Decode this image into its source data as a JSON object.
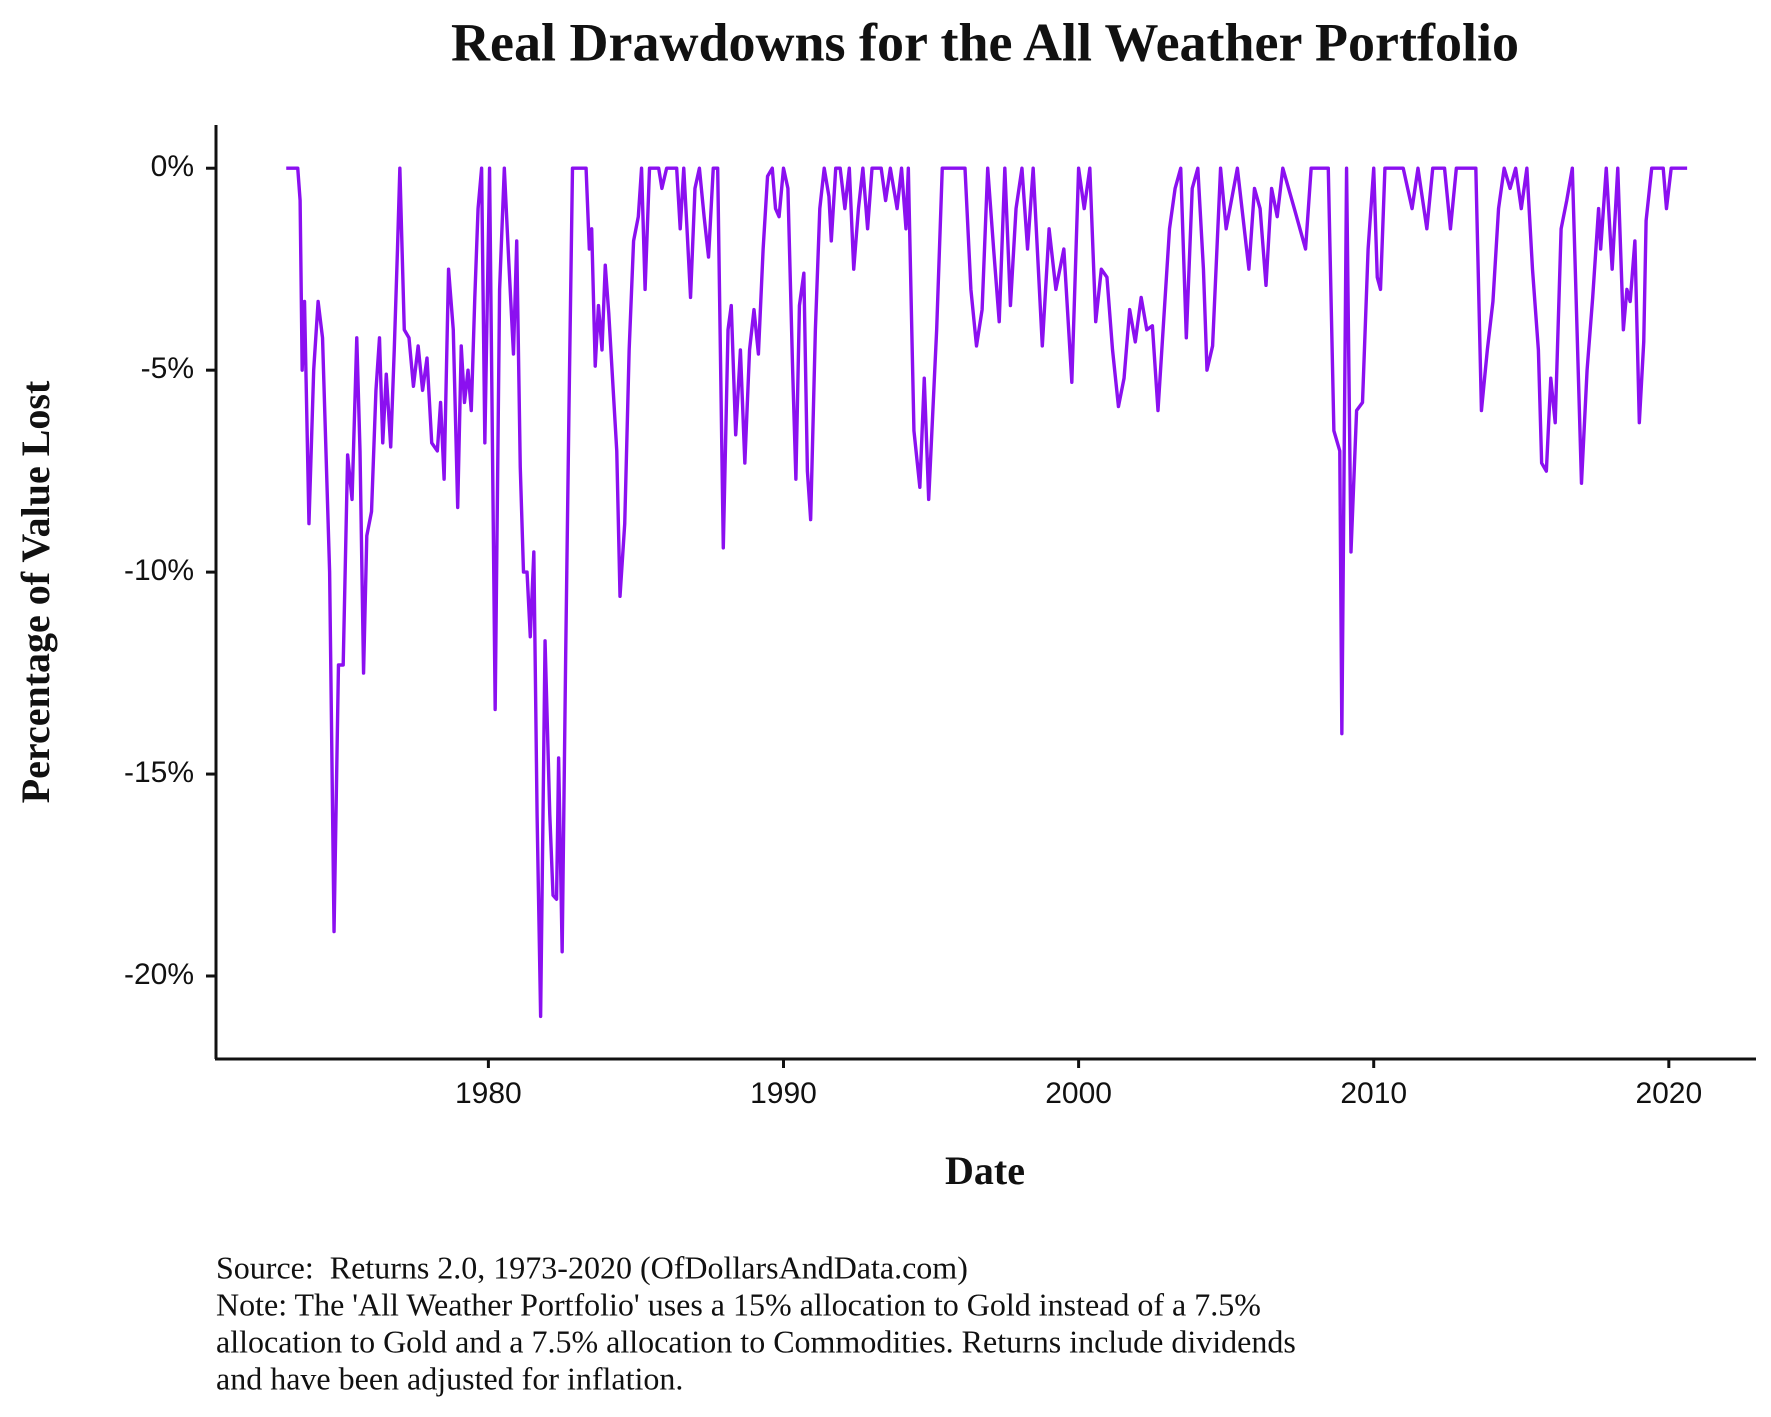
{
  "chart_data": {
    "type": "line",
    "title": "Real Drawdowns for the All Weather Portfolio",
    "xlabel": "Date",
    "ylabel": "Percentage of Value Lost",
    "footer": [
      "Source:  Returns 2.0, 1973-2020 (OfDollarsAndData.com)",
      "Note: The 'All Weather Portfolio' uses a 15% allocation to Gold instead of a 7.5%",
      "allocation to Gold and a 7.5% allocation to Commodities. Returns include dividends",
      "and have been adjusted for inflation."
    ],
    "color": "#8b10f0",
    "xlim": [
      1970.77,
      2022.92
    ],
    "xticks": [
      1980,
      1990,
      2000,
      2010,
      2020
    ],
    "ylim": [
      -22.03,
      1.07
    ],
    "yticks": [
      {
        "value": 0,
        "label": "0%"
      },
      {
        "value": -5,
        "label": "-5%"
      },
      {
        "value": -10,
        "label": "-10%"
      },
      {
        "value": -15,
        "label": "-15%"
      },
      {
        "value": -20,
        "label": "-20%"
      }
    ],
    "grid": false,
    "x": [
      1973.15,
      1973.54,
      1973.62,
      1973.69,
      1973.77,
      1973.92,
      1974.08,
      1974.23,
      1974.38,
      1974.62,
      1974.77,
      1974.92,
      1975.08,
      1975.23,
      1975.38,
      1975.54,
      1975.65,
      1975.77,
      1975.88,
      1976.04,
      1976.19,
      1976.31,
      1976.42,
      1976.54,
      1976.69,
      1976.81,
      1976.92,
      1977.0,
      1977.15,
      1977.31,
      1977.46,
      1977.62,
      1977.77,
      1977.92,
      1978.08,
      1978.27,
      1978.38,
      1978.5,
      1978.65,
      1978.81,
      1978.96,
      1979.08,
      1979.19,
      1979.31,
      1979.42,
      1979.54,
      1979.65,
      1979.77,
      1979.88,
      1980.04,
      1980.23,
      1980.38,
      1980.54,
      1980.69,
      1980.85,
      1980.96,
      1981.08,
      1981.19,
      1981.31,
      1981.42,
      1981.54,
      1981.65,
      1981.77,
      1981.92,
      1982.08,
      1982.19,
      1982.31,
      1982.38,
      1982.5,
      1982.62,
      1982.73,
      1982.85,
      1983.31,
      1983.42,
      1983.5,
      1983.62,
      1983.73,
      1983.85,
      1983.96,
      1984.08,
      1984.23,
      1984.35,
      1984.46,
      1984.62,
      1984.77,
      1984.92,
      1985.08,
      1985.19,
      1985.31,
      1985.46,
      1985.77,
      1985.88,
      1986.04,
      1986.38,
      1986.5,
      1986.62,
      1986.73,
      1986.85,
      1987.0,
      1987.15,
      1987.31,
      1987.46,
      1987.62,
      1987.77,
      1987.96,
      1988.12,
      1988.23,
      1988.38,
      1988.54,
      1988.69,
      1988.85,
      1989.0,
      1989.15,
      1989.31,
      1989.46,
      1989.62,
      1989.73,
      1989.85,
      1990.0,
      1990.15,
      1990.31,
      1990.42,
      1990.54,
      1990.69,
      1990.81,
      1990.92,
      1991.08,
      1991.23,
      1991.38,
      1991.54,
      1991.62,
      1991.77,
      1991.92,
      1992.08,
      1992.23,
      1992.38,
      1992.54,
      1992.69,
      1992.85,
      1993.0,
      1993.31,
      1993.46,
      1993.62,
      1993.85,
      1994.0,
      1994.15,
      1994.23,
      1994.42,
      1994.62,
      1994.77,
      1994.92,
      1995.19,
      1995.38,
      1996.15,
      1996.35,
      1996.54,
      1996.73,
      1996.92,
      1997.12,
      1997.31,
      1997.5,
      1997.69,
      1997.88,
      1998.08,
      1998.27,
      1998.46,
      1998.77,
      1999.0,
      1999.23,
      1999.5,
      1999.77,
      2000.0,
      2000.19,
      2000.38,
      2000.58,
      2000.77,
      2000.96,
      2001.15,
      2001.35,
      2001.54,
      2001.73,
      2001.92,
      2002.12,
      2002.31,
      2002.5,
      2002.69,
      2002.88,
      2003.08,
      2003.27,
      2003.46,
      2003.65,
      2003.85,
      2004.04,
      2004.23,
      2004.35,
      2004.54,
      2004.81,
      2005.0,
      2005.38,
      2005.77,
      2005.96,
      2006.15,
      2006.35,
      2006.54,
      2006.73,
      2006.92,
      2007.31,
      2007.69,
      2007.88,
      2008.46,
      2008.65,
      2008.85,
      2008.92,
      2009.08,
      2009.23,
      2009.42,
      2009.62,
      2009.81,
      2010.0,
      2010.12,
      2010.23,
      2010.38,
      2011.0,
      2011.3,
      2011.5,
      2011.8,
      2012.0,
      2012.4,
      2012.6,
      2012.8,
      2013.46,
      2013.65,
      2013.85,
      2014.04,
      2014.23,
      2014.42,
      2014.62,
      2014.81,
      2015.0,
      2015.19,
      2015.38,
      2015.58,
      2015.69,
      2015.85,
      2016.0,
      2016.15,
      2016.35,
      2016.54,
      2016.73,
      2016.85,
      2017.04,
      2017.23,
      2017.42,
      2017.62,
      2017.69,
      2017.88,
      2018.08,
      2018.27,
      2018.46,
      2018.58,
      2018.69,
      2018.85,
      2019.0,
      2019.15,
      2019.23,
      2019.42,
      2019.81,
      2019.92,
      2020.08,
      2020.62
    ],
    "values": [
      0,
      0,
      -0.8,
      -5,
      -3.3,
      -8.8,
      -5,
      -3.3,
      -4.2,
      -10,
      -18.9,
      -12.3,
      -12.3,
      -7.1,
      -8.2,
      -4.2,
      -7,
      -12.5,
      -9.1,
      -8.5,
      -5.5,
      -4.2,
      -6.8,
      -5.1,
      -6.9,
      -4.5,
      -2,
      0,
      -4,
      -4.2,
      -5.4,
      -4.4,
      -5.5,
      -4.7,
      -6.8,
      -7,
      -5.8,
      -7.7,
      -2.5,
      -4,
      -8.4,
      -4.4,
      -5.8,
      -5,
      -6,
      -3.2,
      -1,
      0,
      -6.8,
      0,
      -13.4,
      -3,
      0,
      -2.3,
      -4.6,
      -1.8,
      -7.4,
      -10,
      -10,
      -11.6,
      -9.5,
      -16,
      -21,
      -11.7,
      -16,
      -18,
      -18.1,
      -14.6,
      -19.4,
      -12,
      -6,
      0,
      0,
      -2,
      -1.5,
      -4.9,
      -3.4,
      -4.5,
      -2.4,
      -3.6,
      -5.5,
      -7,
      -10.6,
      -8.8,
      -4.5,
      -1.8,
      -1.2,
      0,
      -3,
      0,
      0,
      -0.5,
      0,
      0,
      -1.5,
      0,
      -1.5,
      -3.2,
      -0.5,
      0,
      -1.2,
      -2.2,
      0,
      0,
      -9.4,
      -4,
      -3.4,
      -6.6,
      -4.5,
      -7.3,
      -4.5,
      -3.5,
      -4.6,
      -2,
      -0.2,
      0,
      -1,
      -1.2,
      0,
      -0.5,
      -5,
      -7.7,
      -3.4,
      -2.6,
      -7.5,
      -8.7,
      -4,
      -1,
      0,
      -0.7,
      -1.8,
      0,
      0,
      -1,
      0,
      -2.5,
      -1,
      0,
      -1.5,
      0,
      0,
      -0.8,
      0,
      -1,
      0,
      -1.5,
      0,
      -6.5,
      -7.9,
      -5.2,
      -8.2,
      -4,
      0,
      0,
      -3,
      -4.4,
      -3.5,
      0,
      -2,
      -3.8,
      0,
      -3.4,
      -1,
      0,
      -2,
      0,
      -4.4,
      -1.5,
      -3,
      -2,
      -5.3,
      0,
      -1,
      0,
      -3.8,
      -2.5,
      -2.7,
      -4.5,
      -5.9,
      -5.2,
      -3.5,
      -4.3,
      -3.2,
      -4,
      -3.9,
      -6,
      -3.8,
      -1.5,
      -0.5,
      0,
      -4.2,
      -0.5,
      0,
      -2.5,
      -5,
      -4.4,
      0,
      -1.5,
      0,
      -2.5,
      -0.5,
      -1,
      -2.9,
      -0.5,
      -1.2,
      0,
      -1,
      -2,
      0,
      0,
      -6.5,
      -7,
      -14,
      0,
      -9.5,
      -6,
      -5.8,
      -2,
      0,
      -2.7,
      -3,
      0,
      0,
      -1,
      0,
      -1.5,
      0,
      0,
      -1.5,
      0,
      0,
      -6,
      -4.5,
      -3.3,
      -1,
      0,
      -0.5,
      0,
      -1,
      0,
      -2.5,
      -4.5,
      -7.3,
      -7.5,
      -5.2,
      -6.3,
      -1.5,
      -0.8,
      0,
      -3,
      -7.8,
      -5,
      -3.2,
      -1,
      -2,
      0,
      -2.5,
      0,
      -4,
      -3,
      -3.3,
      -1.8,
      -6.3,
      -4.3,
      -1.3,
      0,
      0,
      -1,
      0,
      0
    ]
  }
}
